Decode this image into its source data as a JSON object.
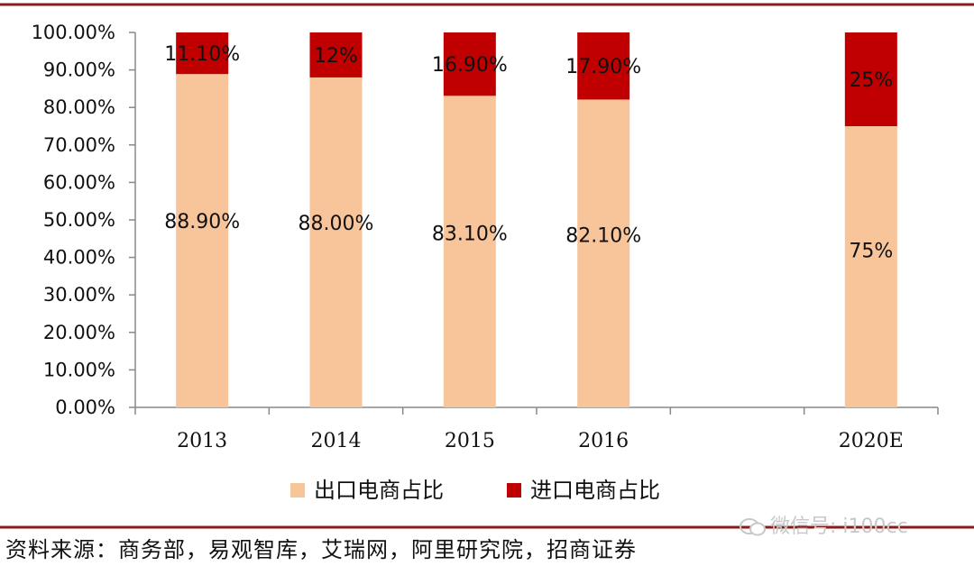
{
  "chart_data": {
    "type": "bar",
    "stacked": true,
    "categories": [
      "2013",
      "2014",
      "2015",
      "2016",
      "",
      "2020E"
    ],
    "series": [
      {
        "name": "出口电商占比",
        "values": [
          88.9,
          88.0,
          83.1,
          82.1,
          null,
          75
        ],
        "labels": [
          "88.90%",
          "88.00%",
          "83.10%",
          "82.10%",
          "",
          "75%"
        ],
        "color": "#f8c49a"
      },
      {
        "name": "进口电商占比",
        "values": [
          11.1,
          12.0,
          16.9,
          17.9,
          null,
          25
        ],
        "labels": [
          "11.10%",
          "12%",
          "16.90%",
          "17.90%",
          "",
          "25%"
        ],
        "color": "#c00000"
      }
    ],
    "ylim": [
      0,
      100
    ],
    "yticks": [
      "0.00%",
      "10.00%",
      "20.00%",
      "30.00%",
      "40.00%",
      "50.00%",
      "60.00%",
      "70.00%",
      "80.00%",
      "90.00%",
      "100.00%"
    ],
    "legend_position": "bottom",
    "grid": false
  },
  "source_text": "资料来源：商务部，易观智库，艾瑞网，阿里研究院，招商证券",
  "watermark_text": "微信号: i100cc",
  "colors": {
    "rule": "#8b1a1a",
    "axis": "#888888"
  }
}
